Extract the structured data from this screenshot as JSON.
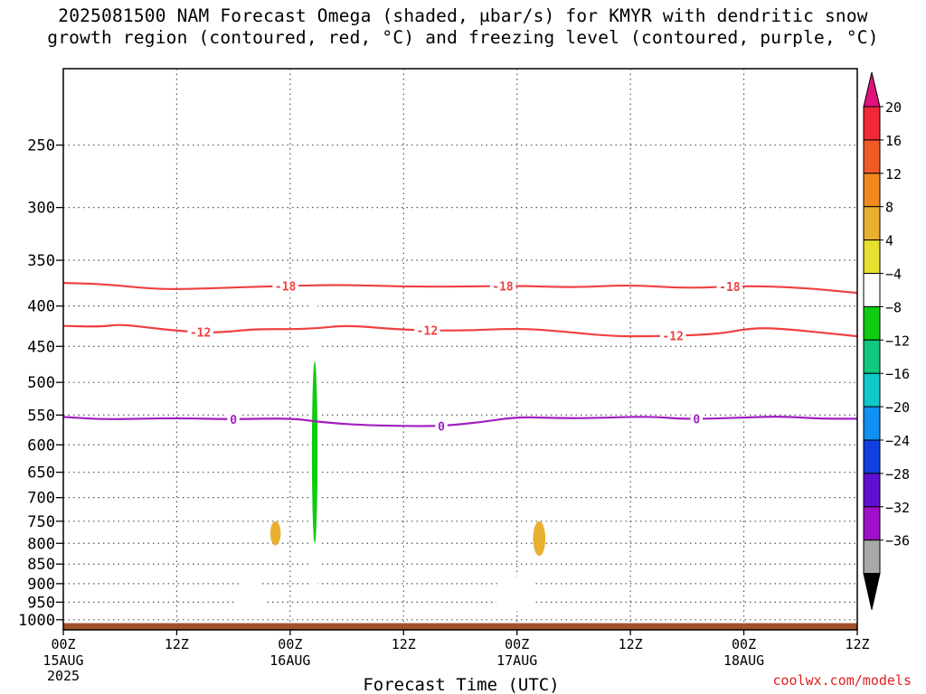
{
  "title": {
    "line1": "2025081500 NAM Forecast Omega (shaded, μbar/s) for KMYR with dendritic snow",
    "line2": "growth region (contoured, red, °C) and freezing level (contoured, purple, °C)"
  },
  "credit": "coolwx.com/models",
  "chart_data": {
    "type": "heatmap",
    "xlabel": "Forecast Time (UTC)",
    "x_range_hours": [
      0,
      84
    ],
    "x_ticks": [
      {
        "hour": 0,
        "label": "00Z",
        "sub": "15AUG",
        "sub2": "2025"
      },
      {
        "hour": 12,
        "label": "12Z"
      },
      {
        "hour": 24,
        "label": "00Z",
        "sub": "16AUG"
      },
      {
        "hour": 36,
        "label": "12Z"
      },
      {
        "hour": 48,
        "label": "00Z",
        "sub": "17AUG"
      },
      {
        "hour": 60,
        "label": "12Z"
      },
      {
        "hour": 72,
        "label": "00Z",
        "sub": "18AUG"
      },
      {
        "hour": 84,
        "label": "12Z"
      }
    ],
    "y_axis": {
      "scale": "log",
      "range_hPa": [
        200,
        1030
      ],
      "inverted": true,
      "ticks": [
        250,
        300,
        350,
        400,
        450,
        500,
        550,
        600,
        650,
        700,
        750,
        800,
        850,
        900,
        950,
        1000
      ]
    },
    "grid": true,
    "colorbar": {
      "labels": [
        "20",
        "16",
        "12",
        "8",
        "4",
        "−4",
        "−8",
        "−12",
        "−16",
        "−20",
        "−24",
        "−28",
        "−32",
        "−36"
      ],
      "colors": [
        "#e0107c",
        "#f02838",
        "#f05a28",
        "#f08a20",
        "#e8b030",
        "#e8e030",
        "#ffffff",
        "#10cc10",
        "#10c880",
        "#10c8c8",
        "#1090f0",
        "#1040e0",
        "#6010d0",
        "#a010c8",
        "#a8a8a8",
        "#000000"
      ]
    },
    "contours": [
      {
        "name": "-18",
        "color": "#f04040",
        "label": "-18",
        "points": [
          [
            0,
            374
          ],
          [
            4,
            375
          ],
          [
            9,
            380
          ],
          [
            12,
            381
          ],
          [
            18,
            379
          ],
          [
            24,
            377
          ],
          [
            30,
            376
          ],
          [
            36,
            378
          ],
          [
            42,
            378
          ],
          [
            48,
            377
          ],
          [
            54,
            379
          ],
          [
            60,
            376
          ],
          [
            66,
            380
          ],
          [
            72,
            377
          ],
          [
            78,
            379
          ],
          [
            84,
            385
          ]
        ],
        "label_hours": [
          23.5,
          46.5,
          70.5
        ]
      },
      {
        "name": "-12",
        "color": "#f04040",
        "label": "-12",
        "points": [
          [
            0,
            424
          ],
          [
            4,
            425
          ],
          [
            6,
            422
          ],
          [
            9,
            426
          ],
          [
            12,
            430
          ],
          [
            16,
            433
          ],
          [
            20,
            428
          ],
          [
            24,
            428
          ],
          [
            27,
            427
          ],
          [
            30,
            423
          ],
          [
            36,
            429
          ],
          [
            42,
            430
          ],
          [
            48,
            427
          ],
          [
            52,
            430
          ],
          [
            58,
            437
          ],
          [
            62,
            437
          ],
          [
            66,
            436
          ],
          [
            70,
            433
          ],
          [
            72,
            428
          ],
          [
            75,
            426
          ],
          [
            84,
            437
          ]
        ],
        "label_hours": [
          14.5,
          38.5,
          64.5
        ]
      },
      {
        "name": "0",
        "color": "#a020c0",
        "label": "0",
        "points": [
          [
            0,
            553
          ],
          [
            4,
            557
          ],
          [
            8,
            556
          ],
          [
            12,
            555
          ],
          [
            18,
            557
          ],
          [
            24,
            555
          ],
          [
            27,
            561
          ],
          [
            31,
            566
          ],
          [
            36,
            568
          ],
          [
            40,
            568
          ],
          [
            44,
            562
          ],
          [
            48,
            553
          ],
          [
            52,
            555
          ],
          [
            56,
            555
          ],
          [
            62,
            552
          ],
          [
            66,
            557
          ],
          [
            72,
            554
          ],
          [
            76,
            552
          ],
          [
            80,
            556
          ],
          [
            84,
            556
          ]
        ],
        "label_hours": [
          18,
          40,
          67
        ]
      }
    ],
    "shaded_regions": [
      {
        "name": "upward-motion-column",
        "value": -6,
        "hours": [
          26.0,
          27.2
        ],
        "pressure_hPa": [
          375,
          975
        ]
      },
      {
        "name": "upward-motion-core",
        "value": -10,
        "hours": [
          26.3,
          26.9
        ],
        "pressure_hPa": [
          470,
          800
        ]
      },
      {
        "name": "upward-motion-blob-1",
        "value": -6,
        "hours": [
          18.2,
          21.3
        ],
        "pressure_hPa": [
          885,
          985
        ]
      },
      {
        "name": "upward-motion-blob-2",
        "value": -6,
        "hours": [
          45.5,
          50.3
        ],
        "pressure_hPa": [
          880,
          975
        ]
      },
      {
        "name": "downward-motion-spot-1",
        "value": 5,
        "hours": [
          21.9,
          23.0
        ],
        "pressure_hPa": [
          750,
          805
        ]
      },
      {
        "name": "downward-motion-spot-2",
        "value": 5,
        "hours": [
          49.7,
          51.0
        ],
        "pressure_hPa": [
          750,
          830
        ]
      }
    ],
    "terrain_pressure_hPa": 1010
  }
}
